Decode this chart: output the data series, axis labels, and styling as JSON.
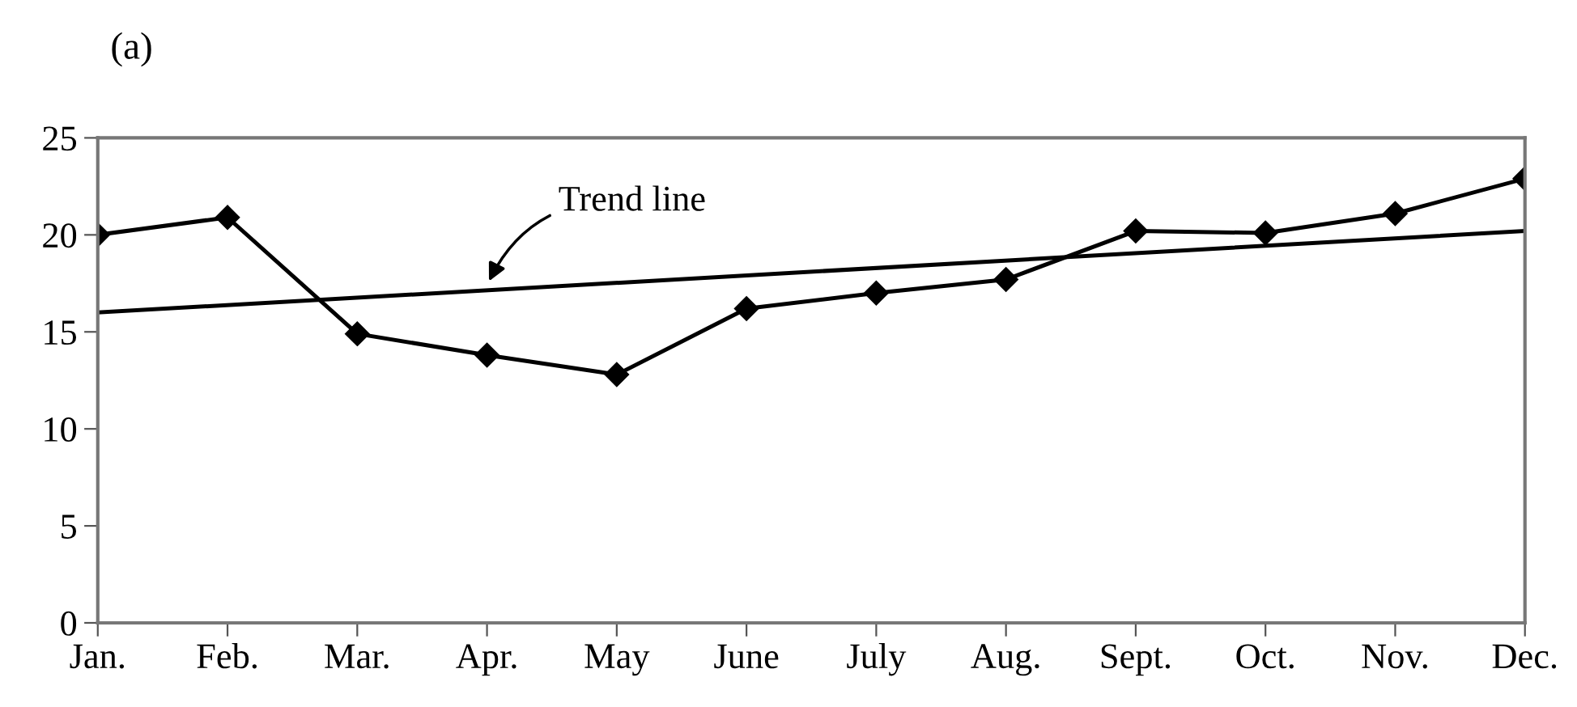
{
  "chart_data": {
    "type": "line",
    "title": "(a)",
    "categories": [
      "Jan.",
      "Feb.",
      "Mar.",
      "Apr.",
      "May",
      "June",
      "July",
      "Aug.",
      "Sept.",
      "Oct.",
      "Nov.",
      "Dec."
    ],
    "series": [
      {
        "color": "#000000",
        "values": [
          20,
          20.9,
          14.9,
          13.8,
          12.8,
          16.2,
          17,
          17.7,
          20.2,
          20.1,
          21.1,
          22.9
        ],
        "marker": "diamond"
      },
      {
        "type": "line",
        "color": "#000000",
        "x": [
          "Jan.",
          "Dec."
        ],
        "values": [
          16,
          20.2
        ],
        "marker": "none"
      }
    ],
    "annotations": [
      {
        "text": "Trend line",
        "x": "Apr.",
        "y": 17.4
      }
    ],
    "ylim": [
      0,
      25
    ],
    "yticks": [
      0,
      5,
      10,
      15,
      20,
      25
    ],
    "grid": false,
    "legend": false
  }
}
